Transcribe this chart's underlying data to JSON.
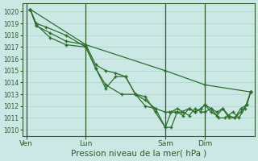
{
  "background_color": "#cce8e4",
  "grid_color": "#aad4d0",
  "line_color": "#2d6e2d",
  "title": "Pression niveau de la mer( hPa )",
  "ylim": [
    1009.5,
    1020.7
  ],
  "yticks": [
    1010,
    1011,
    1012,
    1013,
    1014,
    1015,
    1016,
    1017,
    1018,
    1019,
    1020
  ],
  "xlabel_fontsize": 7.5,
  "x_labels": [
    [
      "Ven",
      0
    ],
    [
      "Lun",
      3
    ],
    [
      "Sam",
      7
    ],
    [
      "Dim",
      9
    ]
  ],
  "x_vlines": [
    0,
    3,
    7,
    9
  ],
  "xlim": [
    -0.2,
    11.5
  ],
  "series": [
    {
      "x": [
        0.2,
        3.0,
        7.0,
        9.0,
        11.3
      ],
      "y": [
        1020.2,
        1017.2,
        1015.0,
        1013.8,
        1013.2
      ]
    },
    {
      "x": [
        0.2,
        0.5,
        1.0,
        2.0,
        3.0,
        3.5,
        4.0,
        4.8,
        5.5,
        6.0,
        6.5,
        7.0,
        7.2,
        7.5,
        7.8,
        8.2,
        8.5,
        8.8,
        9.0,
        9.3,
        9.7,
        10.0,
        10.4,
        10.7,
        11.0,
        11.3
      ],
      "y": [
        1020.2,
        1019.0,
        1018.7,
        1018.0,
        1017.0,
        1015.2,
        1013.8,
        1013.0,
        1013.0,
        1012.5,
        1011.8,
        1011.5,
        1011.5,
        1011.5,
        1011.5,
        1011.8,
        1011.5,
        1011.8,
        1012.1,
        1011.8,
        1011.0,
        1011.0,
        1011.5,
        1011.0,
        1011.8,
        1013.2
      ]
    },
    {
      "x": [
        0.2,
        0.5,
        1.2,
        2.0,
        3.0,
        3.5,
        4.0,
        4.5,
        5.0,
        5.5,
        6.0,
        6.5,
        7.0,
        7.3,
        7.6,
        7.9,
        8.2,
        8.5,
        8.8,
        9.0,
        9.3,
        9.6,
        9.9,
        10.2,
        10.5,
        10.8,
        11.1,
        11.3
      ],
      "y": [
        1020.2,
        1018.9,
        1017.8,
        1017.2,
        1017.0,
        1015.2,
        1013.5,
        1014.5,
        1014.5,
        1013.0,
        1012.0,
        1011.8,
        1010.2,
        1010.2,
        1011.5,
        1011.2,
        1011.8,
        1011.5,
        1011.8,
        1012.1,
        1011.5,
        1011.2,
        1011.8,
        1011.0,
        1011.0,
        1011.8,
        1012.1,
        1013.2
      ]
    },
    {
      "x": [
        0.2,
        0.5,
        1.2,
        2.0,
        3.0,
        3.5,
        4.0,
        4.5,
        5.0,
        5.5,
        6.0,
        6.5,
        7.0,
        7.3,
        7.6,
        7.9,
        8.2,
        8.5,
        8.8,
        9.0,
        9.3,
        9.6,
        9.9,
        10.2,
        10.5,
        10.8,
        11.1,
        11.3
      ],
      "y": [
        1020.2,
        1018.8,
        1018.2,
        1017.5,
        1017.2,
        1015.5,
        1015.0,
        1014.8,
        1014.5,
        1013.0,
        1012.8,
        1011.5,
        1010.2,
        1011.5,
        1011.8,
        1011.5,
        1011.2,
        1011.8,
        1011.5,
        1011.5,
        1011.8,
        1011.5,
        1011.8,
        1011.2,
        1011.0,
        1011.5,
        1012.1,
        1013.2
      ]
    }
  ]
}
